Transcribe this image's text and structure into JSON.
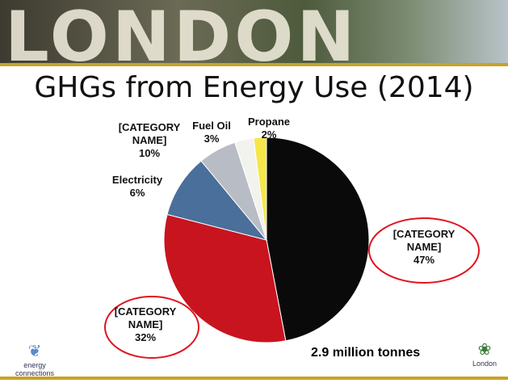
{
  "header": {
    "banner": "LONDON"
  },
  "chart_data": {
    "type": "pie",
    "title": "GHGs from Energy Use (2014)",
    "categories": [
      "[CATEGORY NAME]",
      "[CATEGORY NAME]",
      "[CATEGORY NAME]",
      "Electricity",
      "Fuel Oil",
      "Propane"
    ],
    "values": [
      47,
      32,
      10,
      6,
      3,
      2
    ],
    "value_labels": [
      "47%",
      "32%",
      "10%",
      "6%",
      "3%",
      "2%"
    ],
    "colors": [
      "#0a0a0a",
      "#c8141e",
      "#4a6f9a",
      "#b8bcc4",
      "#f2f2ee",
      "#f5e64a"
    ],
    "annotation": "2.9 million tonnes"
  },
  "footer": {
    "left_logo": "energy connections",
    "right_logo": "London"
  }
}
